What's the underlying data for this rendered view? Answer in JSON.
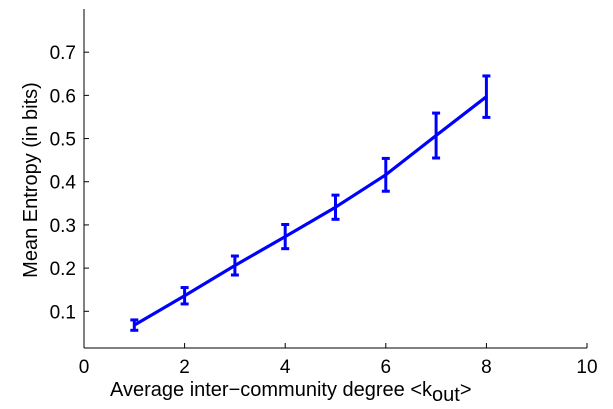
{
  "chart_data": {
    "type": "line",
    "title": "",
    "xlabel": "Average inter−community degree <k",
    "xlabel_subscript": "out",
    "xlabel_suffix": ">",
    "ylabel": "Mean Entropy (in bits)",
    "xlim": [
      0,
      10
    ],
    "ylim": [
      0.015,
      0.8
    ],
    "xticks": [
      0,
      2,
      4,
      6,
      8,
      10
    ],
    "yticks": [
      0.1,
      0.2,
      0.3,
      0.4,
      0.5,
      0.6,
      0.7
    ],
    "grid": false,
    "box": false,
    "series": [
      {
        "color": "#0000ff",
        "x": [
          1,
          2,
          3,
          4,
          5,
          6,
          7,
          8
        ],
        "y": [
          0.068,
          0.136,
          0.206,
          0.273,
          0.341,
          0.416,
          0.507,
          0.597
        ],
        "error": [
          0.012,
          0.019,
          0.022,
          0.028,
          0.028,
          0.038,
          0.052,
          0.048
        ]
      }
    ]
  }
}
